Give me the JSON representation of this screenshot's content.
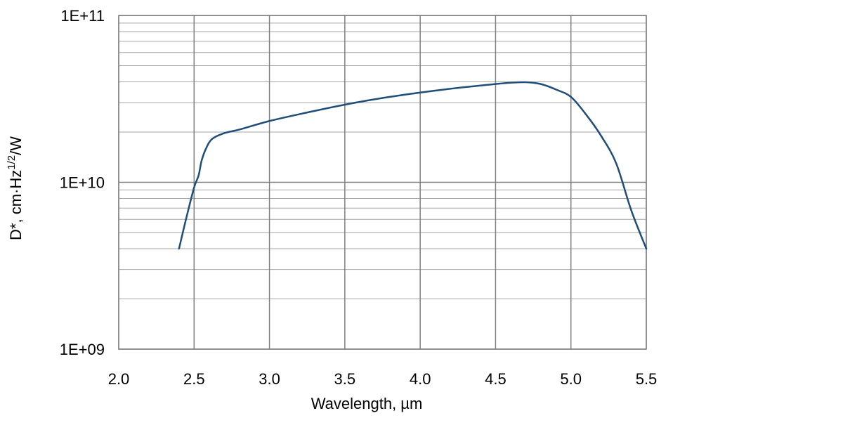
{
  "chart_data": {
    "type": "line",
    "title": "",
    "xlabel": "Wavelength, µm",
    "ylabel": {
      "base": "D*, cm·Hz",
      "superscript": "1/2",
      "suffix": "/W"
    },
    "xlim": [
      2.0,
      5.5
    ],
    "ylim": [
      1000000000,
      100000000000
    ],
    "yscale": "log",
    "grid": true,
    "legend": "none",
    "x_tick_labels": [
      "2.0",
      "2.5",
      "3.0",
      "3.5",
      "4.0",
      "4.5",
      "5.0",
      "5.5"
    ],
    "y_tick_labels": [
      "1E+09",
      "1E+10",
      "1E+11"
    ],
    "series": [
      {
        "color": "#1f4e79",
        "points": [
          [
            2.4,
            4000000000.0
          ],
          [
            2.45,
            6200000000.0
          ],
          [
            2.5,
            9300000000.0
          ],
          [
            2.53,
            11000000000.0
          ],
          [
            2.55,
            13500000000.0
          ],
          [
            2.58,
            16000000000.0
          ],
          [
            2.62,
            18200000000.0
          ],
          [
            2.7,
            19700000000.0
          ],
          [
            2.8,
            20700000000.0
          ],
          [
            3.0,
            23300000000.0
          ],
          [
            3.25,
            26200000000.0
          ],
          [
            3.5,
            29200000000.0
          ],
          [
            3.75,
            32000000000.0
          ],
          [
            4.0,
            34500000000.0
          ],
          [
            4.25,
            36800000000.0
          ],
          [
            4.5,
            38800000000.0
          ],
          [
            4.6,
            39500000000.0
          ],
          [
            4.7,
            39800000000.0
          ],
          [
            4.8,
            38800000000.0
          ],
          [
            4.9,
            36000000000.0
          ],
          [
            5.0,
            32500000000.0
          ],
          [
            5.1,
            25500000000.0
          ],
          [
            5.2,
            19000000000.0
          ],
          [
            5.3,
            13000000000.0
          ],
          [
            5.4,
            6800000000.0
          ],
          [
            5.5,
            4000000000.0
          ]
        ]
      }
    ],
    "colors": {
      "grid": "#a6a6a6",
      "major_grid": "#7f7f7f",
      "frame": "#808080"
    }
  }
}
